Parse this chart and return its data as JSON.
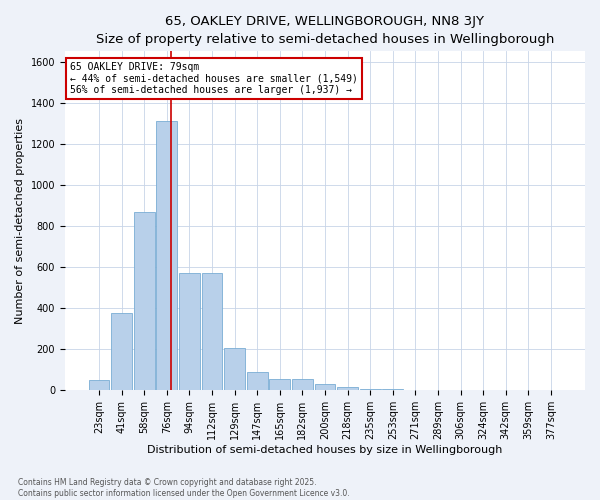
{
  "title": "65, OAKLEY DRIVE, WELLINGBOROUGH, NN8 3JY",
  "subtitle": "Size of property relative to semi-detached houses in Wellingborough",
  "xlabel": "Distribution of semi-detached houses by size in Wellingborough",
  "ylabel": "Number of semi-detached properties",
  "bins": [
    "23sqm",
    "41sqm",
    "58sqm",
    "76sqm",
    "94sqm",
    "112sqm",
    "129sqm",
    "147sqm",
    "165sqm",
    "182sqm",
    "200sqm",
    "218sqm",
    "235sqm",
    "253sqm",
    "271sqm",
    "289sqm",
    "306sqm",
    "324sqm",
    "342sqm",
    "359sqm",
    "377sqm"
  ],
  "values": [
    50,
    375,
    870,
    1310,
    570,
    570,
    205,
    90,
    55,
    55,
    30,
    15,
    5,
    5,
    2,
    2,
    2,
    2,
    2,
    2,
    2
  ],
  "bar_color": "#b8d0ea",
  "bar_edge_color": "#7aadd4",
  "vline_bin_index": 3.17,
  "annotation_text": "65 OAKLEY DRIVE: 79sqm\n← 44% of semi-detached houses are smaller (1,549)\n56% of semi-detached houses are larger (1,937) →",
  "annotation_box_color": "#ffffff",
  "annotation_box_edge_color": "#cc0000",
  "vline_color": "#cc0000",
  "ylim": [
    0,
    1650
  ],
  "yticks": [
    0,
    200,
    400,
    600,
    800,
    1000,
    1200,
    1400,
    1600
  ],
  "footer1": "Contains HM Land Registry data © Crown copyright and database right 2025.",
  "footer2": "Contains public sector information licensed under the Open Government Licence v3.0.",
  "bg_color": "#eef2f9",
  "plot_bg_color": "#ffffff",
  "grid_color": "#c8d4e8",
  "title_fontsize": 9.5,
  "subtitle_fontsize": 8.5,
  "tick_fontsize": 7,
  "label_fontsize": 8,
  "footer_fontsize": 5.5,
  "annot_fontsize": 7
}
